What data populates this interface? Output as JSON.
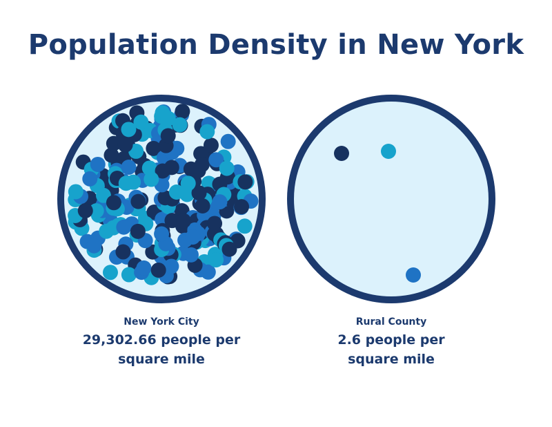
{
  "title": "Population Density in New York",
  "colors": {
    "ring": "#1c3a6e",
    "fill": "#dcf2fc",
    "dots": [
      "#17325f",
      "#1f73c4",
      "#17a3cc"
    ]
  },
  "panels": [
    {
      "place": "New York City",
      "density": "29,302.66 people per square mile",
      "dots": "dense"
    },
    {
      "place": "Rural County",
      "density": "2.6 people per square mile",
      "dots": "sparse"
    }
  ]
}
